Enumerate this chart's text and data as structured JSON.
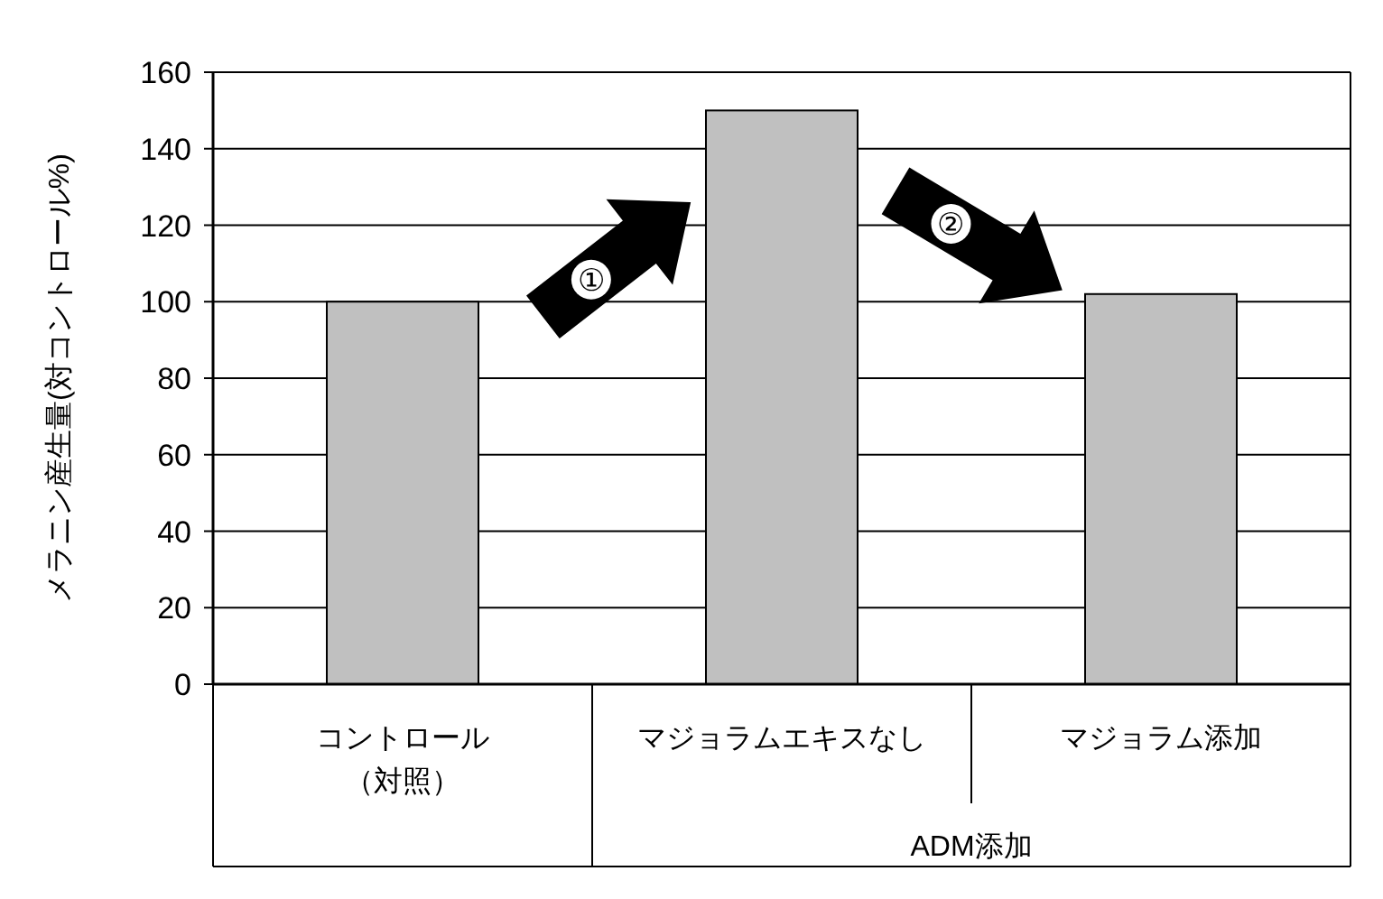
{
  "chart_data": {
    "type": "bar",
    "ylabel": "メラニン産生量(対コントロール%)",
    "categories": [
      "コントロール（対照）",
      "マジョラムエキスなし",
      "マジョラム添加"
    ],
    "values": [
      100,
      150,
      102
    ],
    "color": "#c0c0c0",
    "ylim": [
      0,
      160
    ],
    "yticks": [
      0,
      20,
      40,
      60,
      80,
      100,
      120,
      140,
      160
    ],
    "grid": "y",
    "annotations": [
      "①",
      "②",
      "ADM添加"
    ]
  }
}
